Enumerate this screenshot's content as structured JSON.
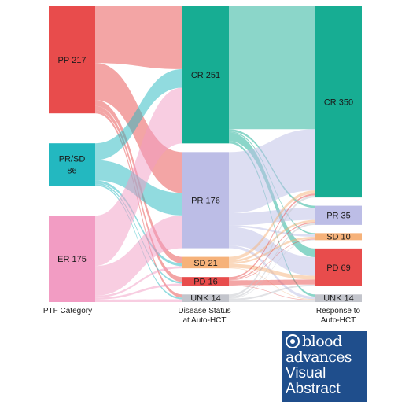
{
  "chart_data": {
    "type": "sankey",
    "axis_labels": {
      "ptf": [
        "PTF Category"
      ],
      "disease": [
        "Disease Status",
        "at Auto-HCT"
      ],
      "response": [
        "Response to",
        "Auto-HCT"
      ]
    },
    "columns": [
      {
        "name": "PTF Category",
        "nodes": [
          {
            "id": "pp",
            "label": "PP 217",
            "value": 217,
            "color": "#e84c4c"
          },
          {
            "id": "prsd",
            "label": "PR/SD\n86",
            "value": 86,
            "color": "#23b8c0"
          },
          {
            "id": "er",
            "label": "ER 175",
            "value": 175,
            "color": "#f29cc3"
          }
        ]
      },
      {
        "name": "Disease Status at Auto-HCT",
        "nodes": [
          {
            "id": "cr1",
            "label": "CR 251",
            "value": 251,
            "color": "#17ad93"
          },
          {
            "id": "pr1",
            "label": "PR 176",
            "value": 176,
            "color": "#bcbde6"
          },
          {
            "id": "sd1",
            "label": "SD 21",
            "value": 21,
            "color": "#f6b27a"
          },
          {
            "id": "pd1",
            "label": "PD 16",
            "value": 16,
            "color": "#e84c4c"
          },
          {
            "id": "unk1",
            "label": "UNK 14",
            "value": 14,
            "color": "#c3c5cc"
          }
        ]
      },
      {
        "name": "Response to Auto-HCT",
        "nodes": [
          {
            "id": "cr2",
            "label": "CR 350",
            "value": 350,
            "color": "#17ad93"
          },
          {
            "id": "pr2",
            "label": "PR 35",
            "value": 35,
            "color": "#bcbde6"
          },
          {
            "id": "sd2",
            "label": "SD 10",
            "value": 10,
            "color": "#f6b27a"
          },
          {
            "id": "pd2",
            "label": "PD 69",
            "value": 69,
            "color": "#e84c4c"
          },
          {
            "id": "unk2",
            "label": "UNK 14",
            "value": 14,
            "color": "#c3c5cc"
          }
        ]
      }
    ],
    "links": [
      {
        "source": "pp",
        "target": "cr1",
        "value": 115
      },
      {
        "source": "pp",
        "target": "pr1",
        "value": 75
      },
      {
        "source": "pp",
        "target": "sd1",
        "value": 12
      },
      {
        "source": "pp",
        "target": "pd1",
        "value": 9
      },
      {
        "source": "pp",
        "target": "unk1",
        "value": 6
      },
      {
        "source": "prsd",
        "target": "cr1",
        "value": 34
      },
      {
        "source": "prsd",
        "target": "pr1",
        "value": 41
      },
      {
        "source": "prsd",
        "target": "sd1",
        "value": 5
      },
      {
        "source": "prsd",
        "target": "pd1",
        "value": 3
      },
      {
        "source": "prsd",
        "target": "unk1",
        "value": 3
      },
      {
        "source": "er",
        "target": "cr1",
        "value": 102
      },
      {
        "source": "er",
        "target": "pr1",
        "value": 60
      },
      {
        "source": "er",
        "target": "sd1",
        "value": 4
      },
      {
        "source": "er",
        "target": "pd1",
        "value": 4
      },
      {
        "source": "er",
        "target": "unk1",
        "value": 5
      },
      {
        "source": "cr1",
        "target": "cr2",
        "value": 225
      },
      {
        "source": "cr1",
        "target": "pr2",
        "value": 4
      },
      {
        "source": "cr1",
        "target": "sd2",
        "value": 2
      },
      {
        "source": "cr1",
        "target": "pd2",
        "value": 16
      },
      {
        "source": "cr1",
        "target": "unk2",
        "value": 4
      },
      {
        "source": "pr1",
        "target": "cr2",
        "value": 112
      },
      {
        "source": "pr1",
        "target": "pr2",
        "value": 22
      },
      {
        "source": "pr1",
        "target": "sd2",
        "value": 3
      },
      {
        "source": "pr1",
        "target": "pd2",
        "value": 34
      },
      {
        "source": "pr1",
        "target": "unk2",
        "value": 5
      },
      {
        "source": "sd1",
        "target": "cr2",
        "value": 6
      },
      {
        "source": "sd1",
        "target": "pr2",
        "value": 4
      },
      {
        "source": "sd1",
        "target": "sd2",
        "value": 3
      },
      {
        "source": "sd1",
        "target": "pd2",
        "value": 7
      },
      {
        "source": "sd1",
        "target": "unk2",
        "value": 1
      },
      {
        "source": "pd1",
        "target": "cr2",
        "value": 3
      },
      {
        "source": "pd1",
        "target": "pr2",
        "value": 2
      },
      {
        "source": "pd1",
        "target": "sd2",
        "value": 1
      },
      {
        "source": "pd1",
        "target": "pd2",
        "value": 9
      },
      {
        "source": "pd1",
        "target": "unk2",
        "value": 1
      },
      {
        "source": "unk1",
        "target": "cr2",
        "value": 4
      },
      {
        "source": "unk1",
        "target": "pr2",
        "value": 3
      },
      {
        "source": "unk1",
        "target": "sd2",
        "value": 1
      },
      {
        "source": "unk1",
        "target": "pd2",
        "value": 3
      },
      {
        "source": "unk1",
        "target": "unk2",
        "value": 3
      }
    ]
  },
  "logo": {
    "line1": "blood",
    "line2": "advances",
    "line3": "Visual",
    "line4": "Abstract",
    "background": "#1f4e8c"
  }
}
